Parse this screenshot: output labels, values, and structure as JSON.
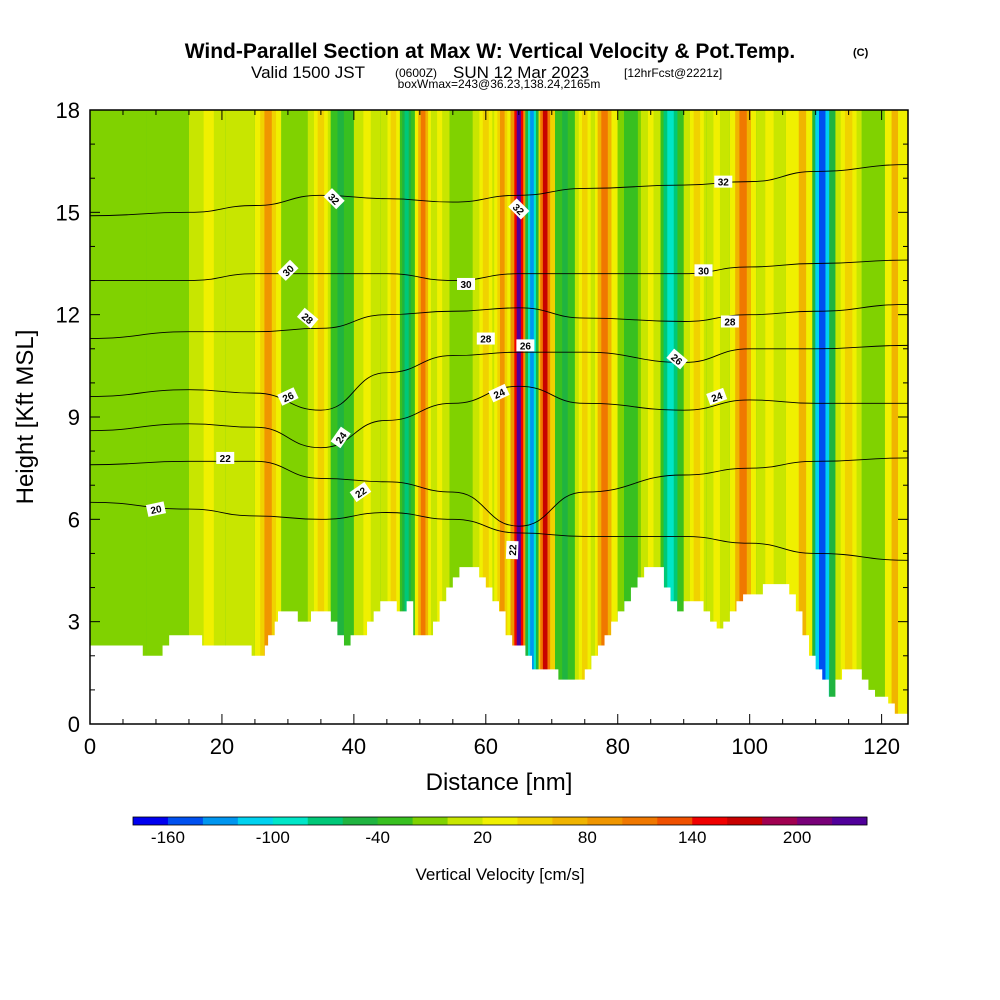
{
  "chart_data": {
    "type": "heatmap",
    "title": "Wind-Parallel Section at Max W: Vertical Velocity & Pot.Temp.",
    "title_mark": "(C)",
    "subtitle_prefix": "Valid 1500 JST",
    "subtitle_utc": "(0600Z)",
    "subtitle_day": "SUN 12 Mar 2023",
    "subtitle_forecast": "[12hrFcst@2221z]",
    "subtitle2": "boxWmax=243@36.23,138.24,2165m",
    "xlabel": "Distance [nm]",
    "ylabel": "Height [Kft MSL]",
    "xlim": [
      0,
      124
    ],
    "ylim": [
      0,
      18
    ],
    "x_ticks": [
      "0",
      "20",
      "40",
      "60",
      "80",
      "100",
      "120"
    ],
    "y_ticks": [
      "0",
      "3",
      "6",
      "9",
      "12",
      "15",
      "18"
    ],
    "colorbar": {
      "label": "Vertical Velocity [cm/s]",
      "tick_labels": [
        "-160",
        "-100",
        "-40",
        "20",
        "80",
        "140",
        "200"
      ],
      "tick_values": [
        -160,
        -100,
        -40,
        20,
        80,
        140,
        200
      ],
      "levels_min": -180,
      "levels_step": 20,
      "colors": [
        "#0000f0",
        "#0050f0",
        "#0096f0",
        "#00d2f0",
        "#00e6c8",
        "#00c878",
        "#20b440",
        "#38c020",
        "#80d200",
        "#c8e600",
        "#f0f000",
        "#f0d200",
        "#f0b400",
        "#f09600",
        "#f07800",
        "#f05000",
        "#f00000",
        "#c80000",
        "#a00050",
        "#780078",
        "#50009a"
      ]
    },
    "w_columns": [
      {
        "x": 5,
        "w": -20
      },
      {
        "x": 12,
        "w": -20
      },
      {
        "x": 18,
        "w": 20
      },
      {
        "x": 23,
        "w": 10
      },
      {
        "x": 27,
        "w": 80
      },
      {
        "x": 31,
        "w": -20
      },
      {
        "x": 35,
        "w": 40
      },
      {
        "x": 38,
        "w": -60
      },
      {
        "x": 42,
        "w": 20
      },
      {
        "x": 46,
        "w": 50
      },
      {
        "x": 48,
        "w": -80
      },
      {
        "x": 50.5,
        "w": 100
      },
      {
        "x": 53,
        "w": 20
      },
      {
        "x": 56,
        "w": -20
      },
      {
        "x": 60,
        "w": 40
      },
      {
        "x": 62.5,
        "w": 80
      },
      {
        "x": 65,
        "w": 243
      },
      {
        "x": 67,
        "w": -140
      },
      {
        "x": 69,
        "w": 160
      },
      {
        "x": 72,
        "w": -60
      },
      {
        "x": 75,
        "w": 40
      },
      {
        "x": 78,
        "w": 100
      },
      {
        "x": 82,
        "w": -40
      },
      {
        "x": 85,
        "w": 20
      },
      {
        "x": 88,
        "w": -100
      },
      {
        "x": 92,
        "w": 40
      },
      {
        "x": 95,
        "w": 20
      },
      {
        "x": 99,
        "w": 100
      },
      {
        "x": 103,
        "w": 20
      },
      {
        "x": 108,
        "w": 60
      },
      {
        "x": 111,
        "w": -160
      },
      {
        "x": 115,
        "w": 40
      },
      {
        "x": 119,
        "w": -20
      },
      {
        "x": 122,
        "w": 60
      }
    ],
    "terrain": [
      {
        "x": 0,
        "h": 2.3
      },
      {
        "x": 3,
        "h": 2.3
      },
      {
        "x": 5,
        "h": 2.3
      },
      {
        "x": 7,
        "h": 2.3
      },
      {
        "x": 8,
        "h": 2.0
      },
      {
        "x": 10,
        "h": 2.0
      },
      {
        "x": 11,
        "h": 2.3
      },
      {
        "x": 12,
        "h": 2.6
      },
      {
        "x": 16,
        "h": 2.6
      },
      {
        "x": 17,
        "h": 2.3
      },
      {
        "x": 22,
        "h": 2.3
      },
      {
        "x": 24,
        "h": 2.3
      },
      {
        "x": 24.5,
        "h": 2.0
      },
      {
        "x": 26,
        "h": 2.0
      },
      {
        "x": 26.5,
        "h": 2.3
      },
      {
        "x": 27,
        "h": 2.6
      },
      {
        "x": 28,
        "h": 3.0
      },
      {
        "x": 28.5,
        "h": 3.3
      },
      {
        "x": 31,
        "h": 3.3
      },
      {
        "x": 31.5,
        "h": 3.0
      },
      {
        "x": 33,
        "h": 3.0
      },
      {
        "x": 33.5,
        "h": 3.3
      },
      {
        "x": 36,
        "h": 3.3
      },
      {
        "x": 36.5,
        "h": 3.0
      },
      {
        "x": 37.5,
        "h": 2.6
      },
      {
        "x": 38.5,
        "h": 2.3
      },
      {
        "x": 39.5,
        "h": 2.6
      },
      {
        "x": 41,
        "h": 2.6
      },
      {
        "x": 42,
        "h": 3.0
      },
      {
        "x": 43,
        "h": 3.3
      },
      {
        "x": 44,
        "h": 3.6
      },
      {
        "x": 46,
        "h": 3.6
      },
      {
        "x": 46.5,
        "h": 3.3
      },
      {
        "x": 47.5,
        "h": 3.3
      },
      {
        "x": 48,
        "h": 3.6
      },
      {
        "x": 49,
        "h": 2.6
      },
      {
        "x": 51,
        "h": 2.6
      },
      {
        "x": 52,
        "h": 3.0
      },
      {
        "x": 53,
        "h": 3.6
      },
      {
        "x": 54,
        "h": 4.0
      },
      {
        "x": 55,
        "h": 4.3
      },
      {
        "x": 56,
        "h": 4.6
      },
      {
        "x": 58,
        "h": 4.6
      },
      {
        "x": 59,
        "h": 4.3
      },
      {
        "x": 60,
        "h": 4.0
      },
      {
        "x": 61,
        "h": 3.6
      },
      {
        "x": 62,
        "h": 3.3
      },
      {
        "x": 63,
        "h": 2.6
      },
      {
        "x": 64,
        "h": 2.3
      },
      {
        "x": 65,
        "h": 2.3
      },
      {
        "x": 66,
        "h": 2.0
      },
      {
        "x": 67,
        "h": 1.6
      },
      {
        "x": 70,
        "h": 1.6
      },
      {
        "x": 71,
        "h": 1.3
      },
      {
        "x": 74,
        "h": 1.3
      },
      {
        "x": 75,
        "h": 1.6
      },
      {
        "x": 76,
        "h": 2.0
      },
      {
        "x": 77,
        "h": 2.3
      },
      {
        "x": 78,
        "h": 2.6
      },
      {
        "x": 79,
        "h": 3.0
      },
      {
        "x": 80,
        "h": 3.3
      },
      {
        "x": 81,
        "h": 3.6
      },
      {
        "x": 82,
        "h": 4.0
      },
      {
        "x": 83,
        "h": 4.3
      },
      {
        "x": 84,
        "h": 4.6
      },
      {
        "x": 86,
        "h": 4.6
      },
      {
        "x": 87,
        "h": 4.0
      },
      {
        "x": 88,
        "h": 3.6
      },
      {
        "x": 89,
        "h": 3.3
      },
      {
        "x": 90,
        "h": 3.6
      },
      {
        "x": 92,
        "h": 3.6
      },
      {
        "x": 93,
        "h": 3.3
      },
      {
        "x": 94,
        "h": 3.0
      },
      {
        "x": 95,
        "h": 2.8
      },
      {
        "x": 96,
        "h": 3.0
      },
      {
        "x": 97,
        "h": 3.3
      },
      {
        "x": 98,
        "h": 3.6
      },
      {
        "x": 99,
        "h": 3.8
      },
      {
        "x": 101,
        "h": 3.8
      },
      {
        "x": 102,
        "h": 4.1
      },
      {
        "x": 105,
        "h": 4.1
      },
      {
        "x": 106,
        "h": 3.8
      },
      {
        "x": 107,
        "h": 3.3
      },
      {
        "x": 108,
        "h": 2.6
      },
      {
        "x": 109,
        "h": 2.0
      },
      {
        "x": 110,
        "h": 1.6
      },
      {
        "x": 111,
        "h": 1.3
      },
      {
        "x": 112,
        "h": 0.8
      },
      {
        "x": 113,
        "h": 1.3
      },
      {
        "x": 114,
        "h": 1.6
      },
      {
        "x": 116,
        "h": 1.6
      },
      {
        "x": 117,
        "h": 1.3
      },
      {
        "x": 118,
        "h": 1.0
      },
      {
        "x": 119,
        "h": 0.8
      },
      {
        "x": 121,
        "h": 0.6
      },
      {
        "x": 122,
        "h": 0.3
      },
      {
        "x": 124,
        "h": 0.3
      }
    ],
    "theta_contours": [
      {
        "value": 20,
        "points": [
          [
            0,
            6.5
          ],
          [
            15,
            6.3
          ],
          [
            25,
            6.1
          ],
          [
            35,
            6.0
          ],
          [
            45,
            6.2
          ],
          [
            55,
            6.0
          ],
          [
            65,
            5.6
          ],
          [
            75,
            5.5
          ],
          [
            90,
            5.5
          ],
          [
            100,
            5.3
          ],
          [
            110,
            5.0
          ],
          [
            124,
            4.8
          ]
        ]
      },
      {
        "value": 22,
        "points": [
          [
            0,
            7.6
          ],
          [
            15,
            7.7
          ],
          [
            25,
            7.7
          ],
          [
            35,
            7.2
          ],
          [
            45,
            7.1
          ],
          [
            55,
            6.8
          ],
          [
            65,
            5.8
          ],
          [
            75,
            6.8
          ],
          [
            90,
            7.3
          ],
          [
            100,
            7.5
          ],
          [
            110,
            7.7
          ],
          [
            124,
            7.8
          ]
        ]
      },
      {
        "value": 24,
        "points": [
          [
            0,
            8.6
          ],
          [
            15,
            8.8
          ],
          [
            25,
            8.7
          ],
          [
            35,
            8.1
          ],
          [
            45,
            8.9
          ],
          [
            55,
            9.4
          ],
          [
            65,
            9.9
          ],
          [
            75,
            9.4
          ],
          [
            90,
            9.2
          ],
          [
            100,
            9.5
          ],
          [
            110,
            9.4
          ],
          [
            124,
            9.4
          ]
        ]
      },
      {
        "value": 26,
        "points": [
          [
            0,
            9.6
          ],
          [
            15,
            9.8
          ],
          [
            25,
            9.7
          ],
          [
            35,
            9.2
          ],
          [
            45,
            10.3
          ],
          [
            55,
            10.8
          ],
          [
            65,
            10.9
          ],
          [
            75,
            10.9
          ],
          [
            90,
            10.6
          ],
          [
            100,
            11.0
          ],
          [
            110,
            11.0
          ],
          [
            124,
            11.1
          ]
        ]
      },
      {
        "value": 28,
        "points": [
          [
            0,
            11.3
          ],
          [
            15,
            11.5
          ],
          [
            25,
            11.5
          ],
          [
            35,
            11.6
          ],
          [
            45,
            12.0
          ],
          [
            55,
            12.1
          ],
          [
            65,
            12.2
          ],
          [
            75,
            11.9
          ],
          [
            90,
            11.8
          ],
          [
            100,
            12.0
          ],
          [
            110,
            12.1
          ],
          [
            124,
            12.3
          ]
        ]
      },
      {
        "value": 30,
        "points": [
          [
            0,
            13.0
          ],
          [
            15,
            13.0
          ],
          [
            25,
            13.2
          ],
          [
            35,
            13.2
          ],
          [
            45,
            13.2
          ],
          [
            55,
            13.0
          ],
          [
            65,
            13.2
          ],
          [
            75,
            13.2
          ],
          [
            90,
            13.2
          ],
          [
            100,
            13.4
          ],
          [
            110,
            13.5
          ],
          [
            124,
            13.6
          ]
        ]
      },
      {
        "value": 32,
        "points": [
          [
            0,
            14.9
          ],
          [
            15,
            15.0
          ],
          [
            25,
            15.2
          ],
          [
            35,
            15.5
          ],
          [
            45,
            15.4
          ],
          [
            55,
            15.3
          ],
          [
            65,
            15.5
          ],
          [
            75,
            15.7
          ],
          [
            90,
            15.8
          ],
          [
            100,
            15.9
          ],
          [
            110,
            16.2
          ],
          [
            124,
            16.4
          ]
        ]
      }
    ],
    "contour_labels": [
      {
        "text": "20",
        "x": 10,
        "y": 6.3,
        "angle": -12
      },
      {
        "text": "22",
        "x": 20.5,
        "y": 7.8,
        "angle": 0
      },
      {
        "text": "22",
        "x": 41,
        "y": 6.8,
        "angle": -35
      },
      {
        "text": "22",
        "x": 64,
        "y": 5.1,
        "angle": -88
      },
      {
        "text": "24",
        "x": 38,
        "y": 8.4,
        "angle": -55
      },
      {
        "text": "24",
        "x": 62,
        "y": 9.7,
        "angle": -25
      },
      {
        "text": "24",
        "x": 95,
        "y": 9.6,
        "angle": -20
      },
      {
        "text": "26",
        "x": 30,
        "y": 9.6,
        "angle": -25
      },
      {
        "text": "26",
        "x": 66,
        "y": 11.1,
        "angle": 0
      },
      {
        "text": "26",
        "x": 89,
        "y": 10.7,
        "angle": 40
      },
      {
        "text": "28",
        "x": 33,
        "y": 11.9,
        "angle": 40
      },
      {
        "text": "28",
        "x": 60,
        "y": 11.3,
        "angle": 0
      },
      {
        "text": "28",
        "x": 97,
        "y": 11.8,
        "angle": 0
      },
      {
        "text": "30",
        "x": 30,
        "y": 13.3,
        "angle": -45
      },
      {
        "text": "30",
        "x": 57,
        "y": 12.9,
        "angle": 0
      },
      {
        "text": "30",
        "x": 93,
        "y": 13.3,
        "angle": 0
      },
      {
        "text": "32",
        "x": 37,
        "y": 15.4,
        "angle": 45
      },
      {
        "text": "32",
        "x": 65,
        "y": 15.1,
        "angle": 45
      },
      {
        "text": "32",
        "x": 96,
        "y": 15.9,
        "angle": 0
      }
    ]
  }
}
